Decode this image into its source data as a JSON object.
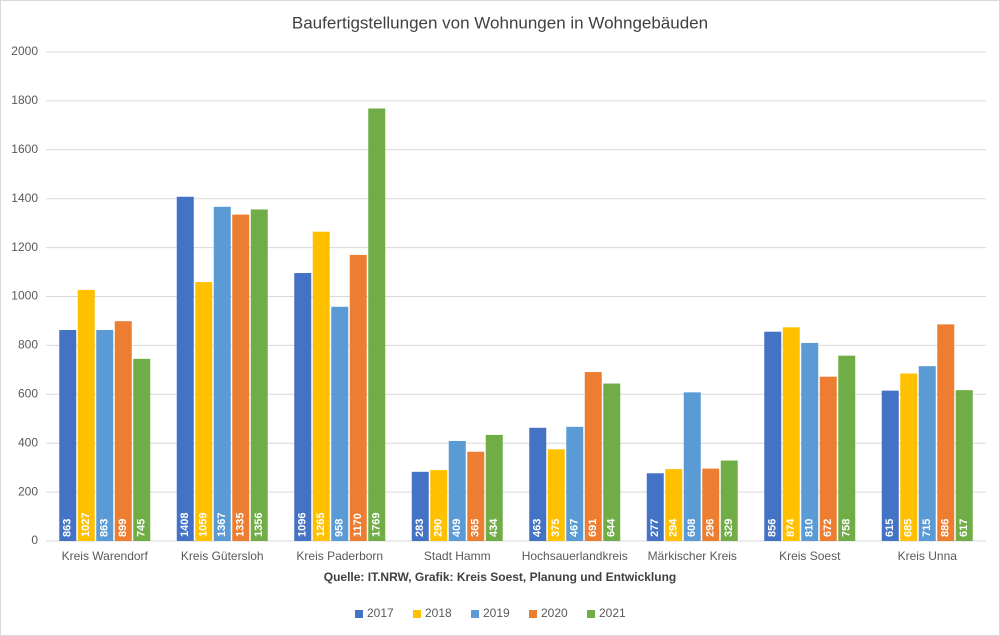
{
  "chart_data": {
    "type": "bar",
    "title": "Baufertigstellungen von Wohnungen in Wohngebäuden",
    "caption": "Quelle: IT.NRW, Grafik: Kreis Soest, Planung und Entwicklung",
    "categories": [
      "Kreis Warendorf",
      "Kreis Gütersloh",
      "Kreis Paderborn",
      "Stadt Hamm",
      "Hochsauerlandkreis",
      "Märkischer Kreis",
      "Kreis Soest",
      "Kreis Unna"
    ],
    "series": [
      {
        "name": "2017",
        "color": "#4472c4",
        "values": [
          863,
          1408,
          1096,
          283,
          463,
          277,
          856,
          615
        ]
      },
      {
        "name": "2018",
        "color": "#ffc000",
        "values": [
          1027,
          1059,
          1265,
          290,
          375,
          294,
          874,
          685
        ]
      },
      {
        "name": "2019",
        "color": "#5b9bd5",
        "values": [
          863,
          1367,
          958,
          409,
          467,
          608,
          810,
          715
        ]
      },
      {
        "name": "2020",
        "color": "#ed7d31",
        "values": [
          899,
          1335,
          1170,
          365,
          691,
          296,
          672,
          886
        ]
      },
      {
        "name": "2021",
        "color": "#70ad47",
        "values": [
          745,
          1356,
          1769,
          434,
          644,
          329,
          758,
          617
        ]
      }
    ],
    "ylim": [
      0,
      2000
    ],
    "yticks": [
      0,
      200,
      400,
      600,
      800,
      1000,
      1200,
      1400,
      1600,
      1800,
      2000
    ],
    "grid": true,
    "legend": "bottom"
  }
}
